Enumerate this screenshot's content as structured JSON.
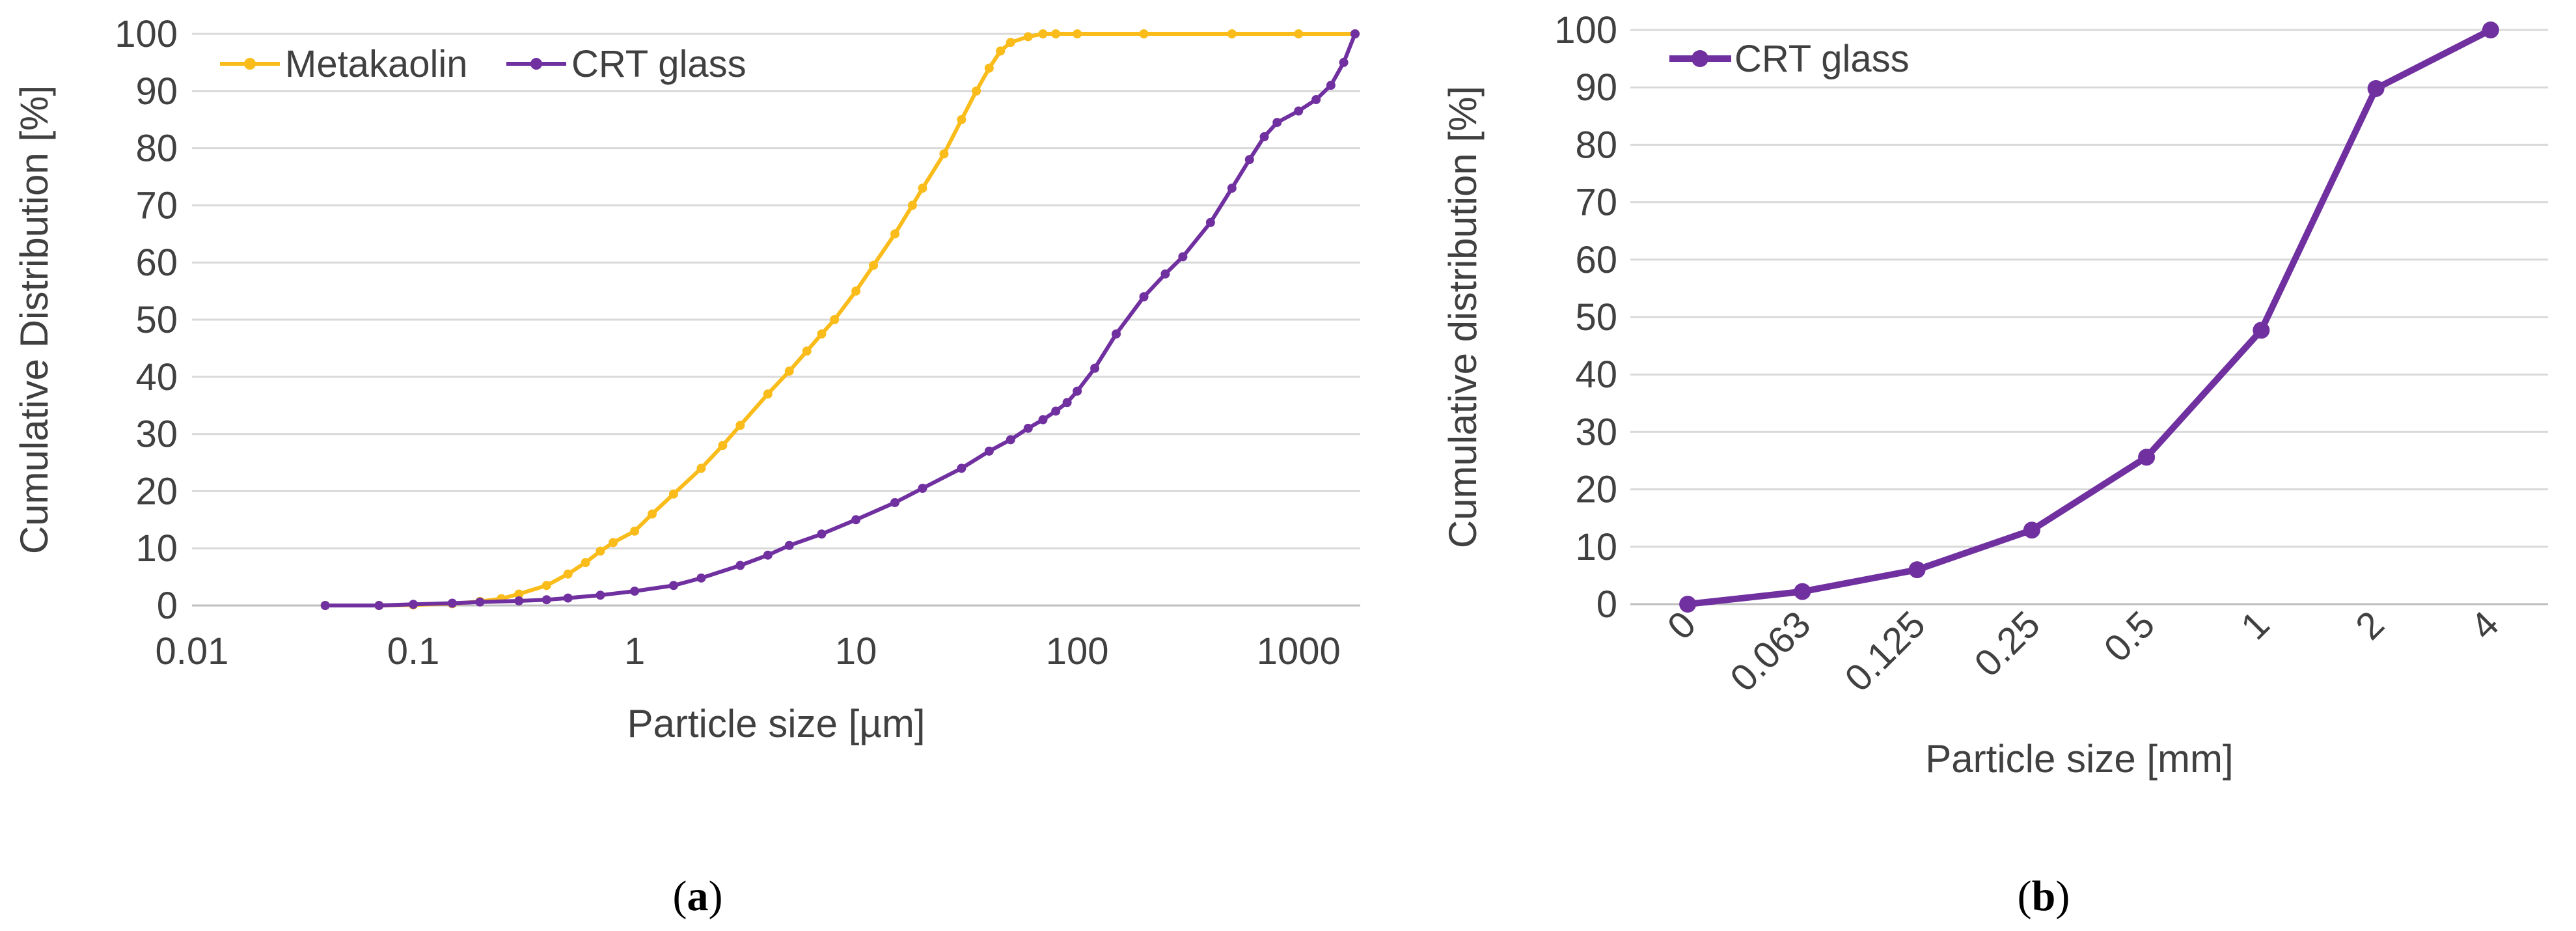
{
  "chart_data": [
    {
      "panel": "a",
      "type": "line",
      "x_scale": "log",
      "title": "",
      "xlabel": "Particle size [µm]",
      "ylabel": "Cumulative Distribution [%]",
      "xlim": [
        0.01,
        1900
      ],
      "ylim": [
        0,
        100
      ],
      "x_ticks": [
        0.01,
        0.1,
        1,
        10,
        100,
        1000
      ],
      "x_tick_labels": [
        "0.01",
        "0.1",
        "1",
        "10",
        "100",
        "1000"
      ],
      "y_ticks": [
        0,
        10,
        20,
        30,
        40,
        50,
        60,
        70,
        80,
        90,
        100
      ],
      "y_tick_labels": [
        "0",
        "10",
        "20",
        "30",
        "40",
        "50",
        "60",
        "70",
        "80",
        "90",
        "100"
      ],
      "grid": "horizontal",
      "legend": "top-left",
      "caption_letter": "a",
      "series": [
        {
          "name": "Metakaolin",
          "color": "#F9BC1A",
          "x": [
            0.04,
            0.07,
            0.1,
            0.15,
            0.2,
            0.25,
            0.3,
            0.4,
            0.5,
            0.6,
            0.7,
            0.8,
            1,
            1.2,
            1.5,
            2,
            2.5,
            3,
            4,
            5,
            6,
            7,
            8,
            10,
            12,
            15,
            18,
            20,
            25,
            30,
            35,
            40,
            45,
            50,
            60,
            70,
            80,
            100,
            200,
            500,
            1000,
            1800
          ],
          "y": [
            0,
            0,
            0.1,
            0.3,
            0.7,
            1.2,
            2,
            3.5,
            5.5,
            7.5,
            9.5,
            11,
            13,
            16,
            19.5,
            24,
            28,
            31.5,
            37,
            41,
            44.5,
            47.5,
            50,
            55,
            59.5,
            65,
            70,
            73,
            79,
            85,
            90,
            94,
            97,
            98.5,
            99.5,
            100,
            100,
            100,
            100,
            100,
            100,
            100
          ]
        },
        {
          "name": "CRT glass",
          "color": "#7030A0",
          "x": [
            0.04,
            0.07,
            0.1,
            0.15,
            0.2,
            0.3,
            0.4,
            0.5,
            0.7,
            1,
            1.5,
            2,
            3,
            4,
            5,
            7,
            10,
            15,
            20,
            30,
            40,
            50,
            60,
            70,
            80,
            90,
            100,
            120,
            150,
            200,
            250,
            300,
            400,
            500,
            600,
            700,
            800,
            1000,
            1200,
            1400,
            1600,
            1800
          ],
          "y": [
            0,
            0,
            0.2,
            0.4,
            0.6,
            0.8,
            1,
            1.3,
            1.8,
            2.5,
            3.5,
            4.8,
            7,
            8.8,
            10.5,
            12.5,
            15,
            18,
            20.5,
            24,
            27,
            29,
            31,
            32.5,
            34,
            35.5,
            37.5,
            41.5,
            47.5,
            54,
            58,
            61,
            67,
            73,
            78,
            82,
            84.5,
            86.5,
            88.5,
            91,
            95,
            100
          ]
        }
      ]
    },
    {
      "panel": "b",
      "type": "line",
      "x_scale": "category",
      "title": "",
      "xlabel": "Particle size [mm]",
      "ylabel": "Cumulative distribution [%]",
      "ylim": [
        0,
        100
      ],
      "categories": [
        "0",
        "0.063",
        "0.125",
        "0.25",
        "0.5",
        "1",
        "2",
        "4"
      ],
      "y_ticks": [
        0,
        10,
        20,
        30,
        40,
        50,
        60,
        70,
        80,
        90,
        100
      ],
      "y_tick_labels": [
        "0",
        "10",
        "20",
        "30",
        "40",
        "50",
        "60",
        "70",
        "80",
        "90",
        "100"
      ],
      "grid": "horizontal",
      "legend": "top-left",
      "caption_letter": "b",
      "series": [
        {
          "name": "CRT glass",
          "color": "#7030A0",
          "values": [
            0,
            2.2,
            6,
            12.9,
            25.6,
            47.7,
            89.8,
            100
          ]
        }
      ]
    }
  ]
}
